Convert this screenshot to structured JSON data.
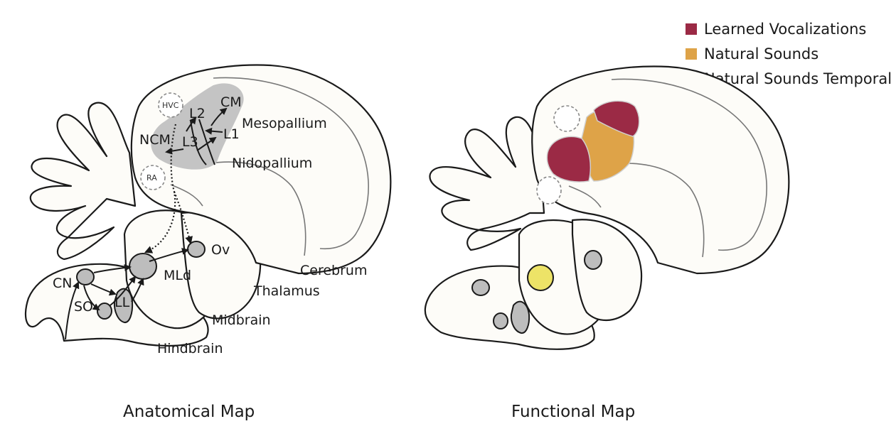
{
  "legend": {
    "items": [
      {
        "label": "Learned Vocalizations",
        "color": "#9b2a45"
      },
      {
        "label": "Natural Sounds",
        "color": "#dea348"
      },
      {
        "label": "Natural Sounds Temporal",
        "color": "#ede367"
      }
    ]
  },
  "panels": {
    "anatomical": {
      "caption": "Anatomical Map",
      "regions": {
        "cerebrum": "Cerebrum",
        "thalamus": "Thalamus",
        "midbrain": "Midbrain",
        "hindbrain": "Hindbrain",
        "mesopallium": "Mesopallium",
        "nidopallium": "Nidopallium"
      },
      "nuclei": {
        "cm": "CM",
        "l2": "L2",
        "l1": "L1",
        "l3": "L3",
        "ncm": "NCM",
        "hvc": "HVC",
        "ra": "RA",
        "ov": "Ov",
        "mld": "MLd",
        "cn": "CN",
        "so": "SO",
        "ll": "LL"
      }
    },
    "functional": {
      "caption": "Functional Map"
    }
  },
  "colors": {
    "outline": "#1a1a1a",
    "tissue": "#fdfcf8",
    "nucleus": "#bdbdbd",
    "auditory_field": "#c4c4c4"
  }
}
